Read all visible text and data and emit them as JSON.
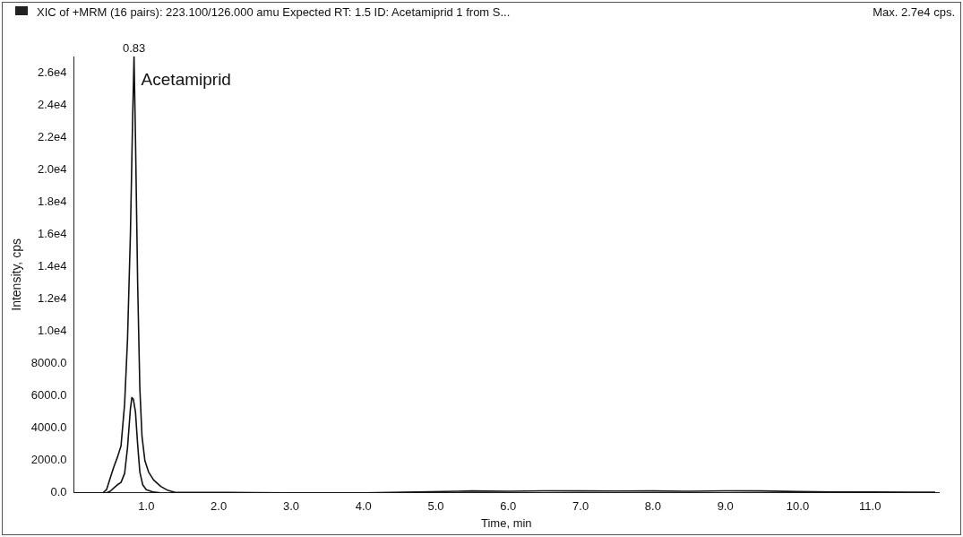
{
  "chart_data": {
    "type": "line",
    "title": "XIC of +MRM (16 pairs): 223.100/126.000 amu Expected RT: 1.5 ID: Acetamiprid 1 from S...",
    "subtitle": "Max. 2.7e4 cps.",
    "xlabel": "Time, min",
    "ylabel": "Intensity, cps",
    "series": [
      {
        "color": "#111111",
        "x": [
          0.0,
          0.4,
          0.45,
          0.5,
          0.55,
          0.6,
          0.65,
          0.7,
          0.74,
          0.78,
          0.81,
          0.83,
          0.85,
          0.88,
          0.91,
          0.94,
          0.98,
          1.03,
          1.1,
          1.2,
          1.3,
          1.4,
          2.0,
          2.5,
          3.0,
          4.0,
          5.3,
          5.5,
          6.0,
          6.5,
          7.0,
          7.5,
          8.0,
          8.5,
          9.0,
          9.5,
          10.0,
          10.5,
          11.0,
          11.9
        ],
        "values": [
          0,
          0,
          200,
          900,
          1600,
          2200,
          2900,
          5500,
          9500,
          16000,
          23000,
          27000,
          22000,
          13000,
          6500,
          3500,
          2000,
          1300,
          800,
          400,
          150,
          30,
          30,
          20,
          0,
          0,
          100,
          120,
          100,
          130,
          120,
          110,
          120,
          100,
          130,
          120,
          80,
          60,
          50,
          40
        ]
      },
      {
        "color": "#111111",
        "x": [
          0.0,
          0.45,
          0.5,
          0.55,
          0.6,
          0.65,
          0.7,
          0.74,
          0.78,
          0.8,
          0.82,
          0.85,
          0.88,
          0.91,
          0.95,
          1.0,
          1.1,
          1.2
        ],
        "values": [
          0,
          0,
          100,
          300,
          500,
          650,
          1200,
          2800,
          5200,
          5900,
          5800,
          5000,
          3000,
          1300,
          500,
          200,
          50,
          0
        ]
      }
    ],
    "xlim": [
      0,
      11.95
    ],
    "xticks": [
      {
        "value": 1,
        "label": "1.0"
      },
      {
        "value": 2,
        "label": "2.0"
      },
      {
        "value": 3,
        "label": "3.0"
      },
      {
        "value": 4,
        "label": "4.0"
      },
      {
        "value": 5,
        "label": "5.0"
      },
      {
        "value": 6,
        "label": "6.0"
      },
      {
        "value": 7,
        "label": "7.0"
      },
      {
        "value": 8,
        "label": "8.0"
      },
      {
        "value": 9,
        "label": "9.0"
      },
      {
        "value": 10,
        "label": "10.0"
      },
      {
        "value": 11,
        "label": "11.0"
      }
    ],
    "ylim": [
      0,
      27000
    ],
    "yticks": [
      {
        "value": 0,
        "label": "0.0"
      },
      {
        "value": 2000,
        "label": "2000.0"
      },
      {
        "value": 4000,
        "label": "4000.0"
      },
      {
        "value": 6000,
        "label": "6000.0"
      },
      {
        "value": 8000,
        "label": "8000.0"
      },
      {
        "value": 10000,
        "label": "1.0e4"
      },
      {
        "value": 12000,
        "label": "1.2e4"
      },
      {
        "value": 14000,
        "label": "1.4e4"
      },
      {
        "value": 16000,
        "label": "1.6e4"
      },
      {
        "value": 18000,
        "label": "1.8e4"
      },
      {
        "value": 20000,
        "label": "2.0e4"
      },
      {
        "value": 22000,
        "label": "2.2e4"
      },
      {
        "value": 24000,
        "label": "2.4e4"
      },
      {
        "value": 26000,
        "label": "2.6e4"
      }
    ],
    "annotations": [
      {
        "text": "0.83",
        "x": 0.83,
        "y": 27000
      },
      {
        "text": "Acetamiprid",
        "x": 0.83,
        "y": 25500
      }
    ],
    "grid": false,
    "legend": false,
    "marker": "none",
    "line_style": "solid"
  }
}
